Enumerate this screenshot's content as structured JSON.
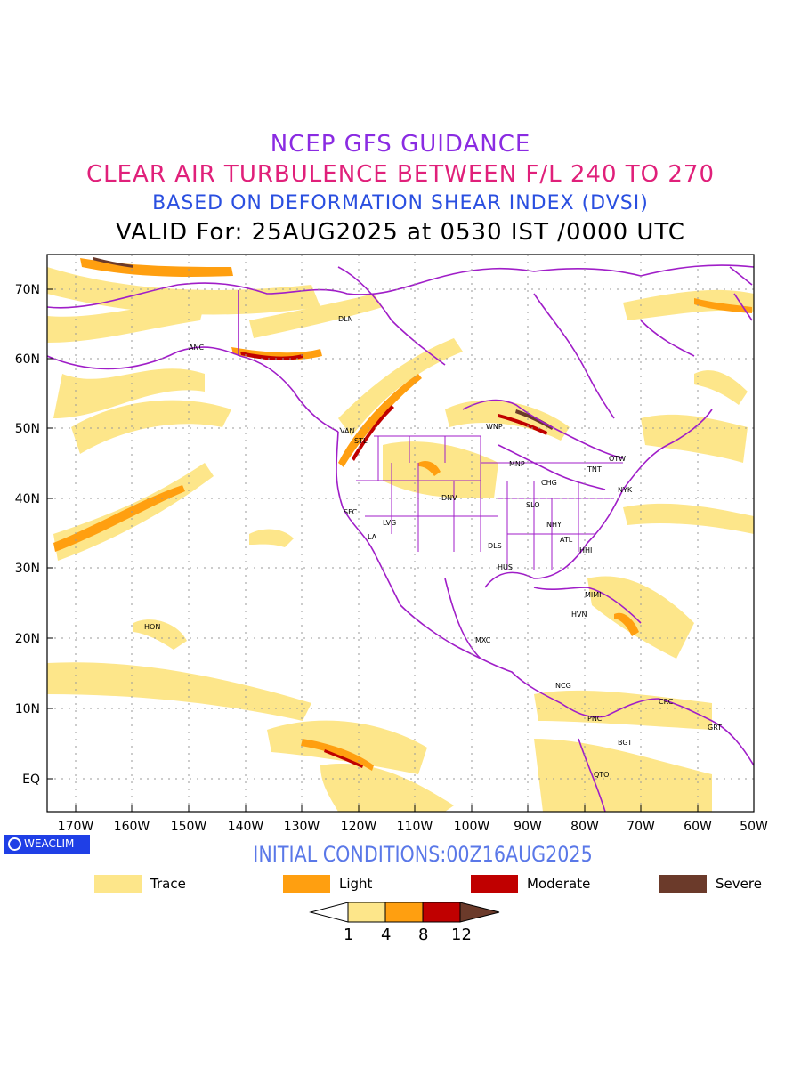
{
  "header": {
    "line1": "NCEP GFS GUIDANCE",
    "line2": "CLEAR AIR TURBULENCE BETWEEN F/L 240 TO 270",
    "line3": "BASED ON DEFORMATION SHEAR INDEX (DVSI)",
    "line4": "VALID For: 25AUG2025 at 0530 IST /0000 UTC"
  },
  "colors": {
    "title1": "#8a2be2",
    "title2": "#e0207a",
    "title3": "#2a4fe0",
    "trace": "#fde68a",
    "light": "#ff9f10",
    "moderate": "#c00000",
    "severe": "#6b3a2a",
    "borders": "#a01ec8"
  },
  "axes": {
    "lat_labels": [
      "70N",
      "60N",
      "50N",
      "40N",
      "30N",
      "20N",
      "10N",
      "EQ"
    ],
    "lon_labels": [
      "170W",
      "160W",
      "150W",
      "140W",
      "130W",
      "120W",
      "110W",
      "100W",
      "90W",
      "80W",
      "70W",
      "60W",
      "50W"
    ]
  },
  "stations": [
    "ANC",
    "DLN",
    "VAN",
    "STL",
    "WNP",
    "MNP",
    "TNT",
    "OTW",
    "CHG",
    "NYK",
    "SFC",
    "LVG",
    "DNV",
    "SLO",
    "NHY",
    "LA",
    "ATL",
    "DLS",
    "HHI",
    "HUS",
    "MIMI",
    "HVN",
    "HON",
    "MXC",
    "NCG",
    "CRC",
    "PNC",
    "GRT",
    "BGT",
    "QTO"
  ],
  "branding": {
    "badge": "WEACLIM"
  },
  "footer": {
    "initial": "INITIAL CONDITIONS:00Z16AUG2025"
  },
  "legend": [
    {
      "label": "Trace",
      "color": "#fde68a"
    },
    {
      "label": "Light",
      "color": "#ff9f10"
    },
    {
      "label": "Moderate",
      "color": "#c00000"
    },
    {
      "label": "Severe",
      "color": "#6b3a2a"
    }
  ],
  "colorbar": {
    "ticks": [
      "1",
      "4",
      "8",
      "12"
    ]
  }
}
